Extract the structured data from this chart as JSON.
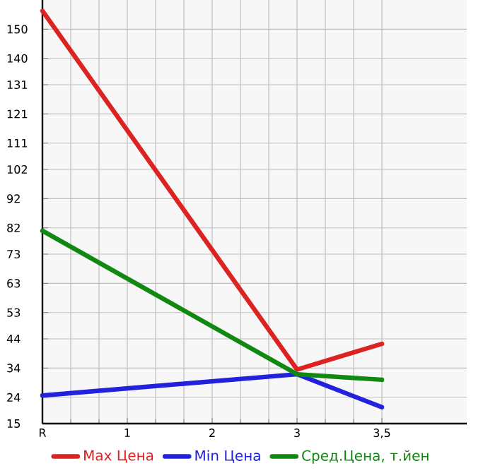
{
  "chart_data": {
    "type": "line",
    "categories": [
      "R",
      "1",
      "2",
      "3",
      "3,5"
    ],
    "series": [
      {
        "name": "Max Цена",
        "color": "#dd2222",
        "values": [
          156.3,
          null,
          null,
          33.5,
          42.3
        ]
      },
      {
        "name": "Min Цена",
        "color": "#2222dd",
        "values": [
          24.6,
          null,
          null,
          31.9,
          20.6
        ]
      },
      {
        "name": "Сред.Цена, т.йен",
        "color": "#118811",
        "values": [
          81.0,
          null,
          null,
          31.9,
          30.0
        ]
      }
    ],
    "ylim": [
      15,
      160
    ],
    "yticks": [
      15,
      24,
      34,
      44,
      53,
      63,
      73,
      82,
      92,
      102,
      111,
      121,
      131,
      140,
      150
    ],
    "grid": true,
    "legend": "bottom",
    "marker": "none",
    "line_style": "solid"
  }
}
